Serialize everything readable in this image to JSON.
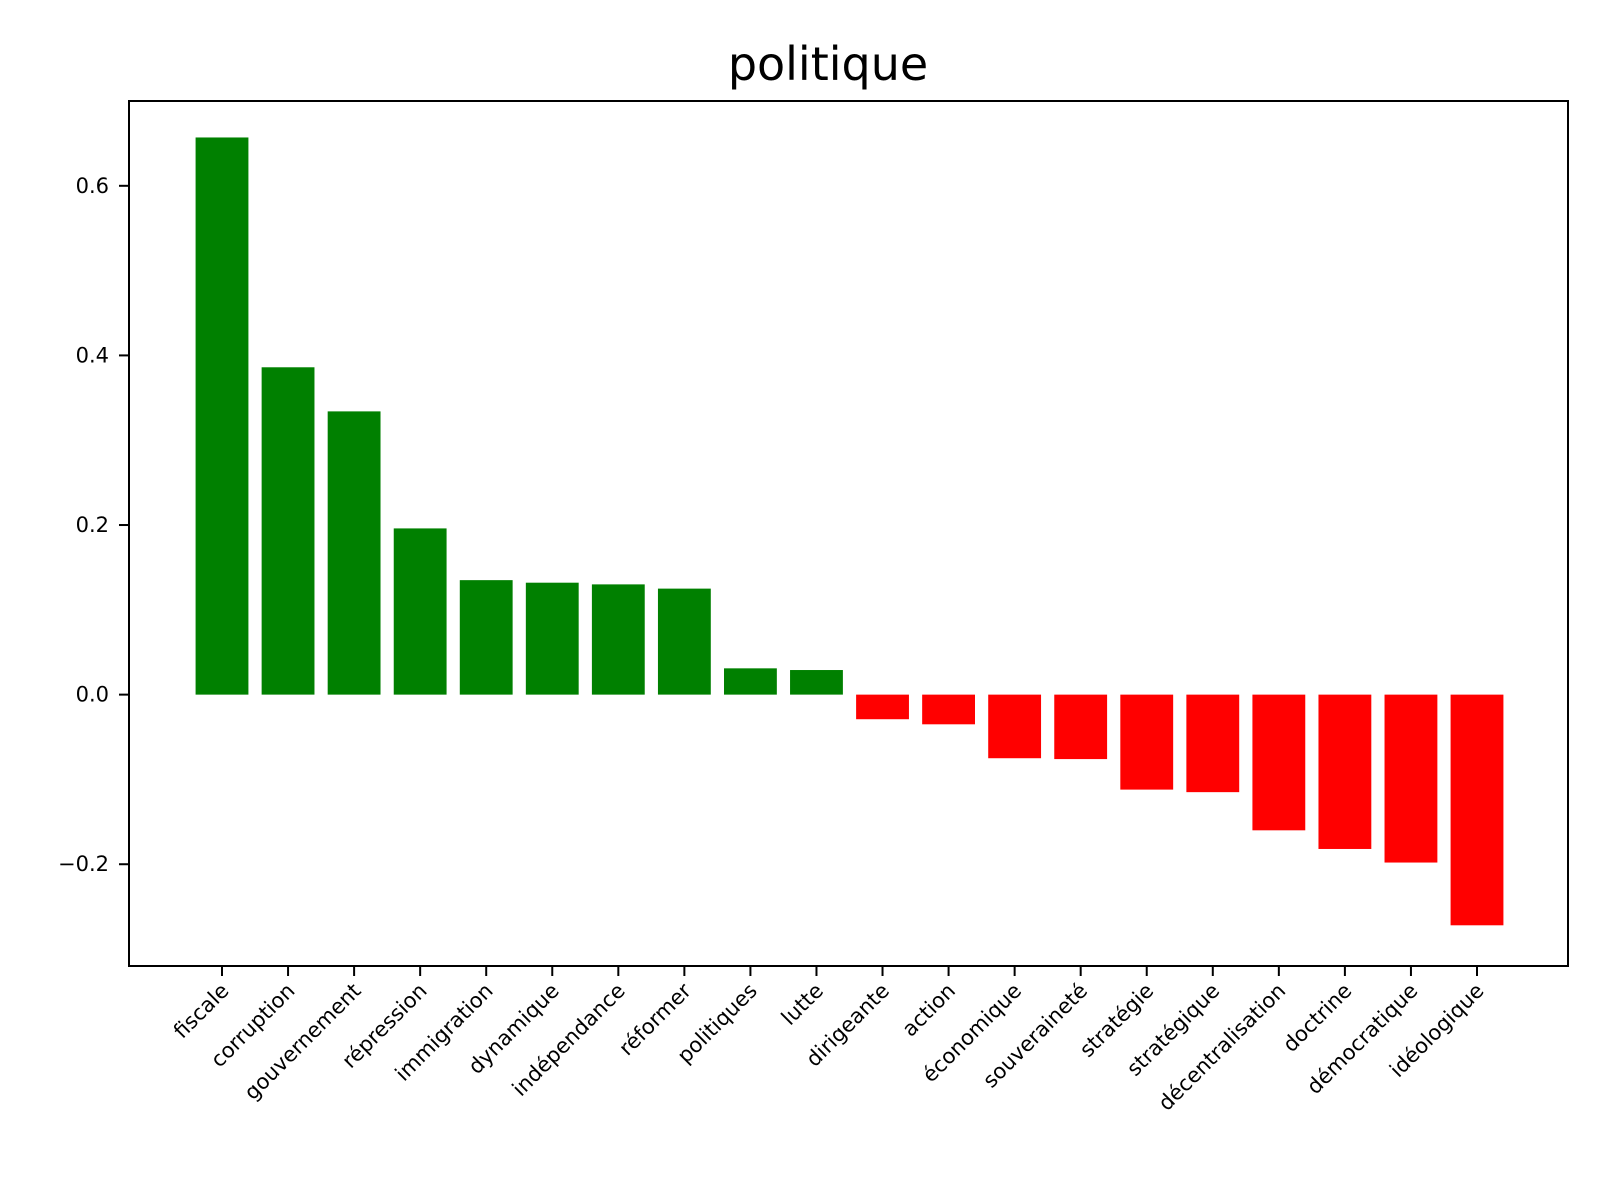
{
  "chart_data": {
    "type": "bar",
    "title": "politique",
    "xlabel": "",
    "ylabel": "",
    "ylim": [
      -0.32,
      0.7
    ],
    "yticks": [
      -0.2,
      0.0,
      0.2,
      0.4,
      0.6
    ],
    "ytick_labels": [
      "−0.2",
      "0.0",
      "0.2",
      "0.4",
      "0.6"
    ],
    "categories": [
      "fiscale",
      "corruption",
      "gouvernement",
      "répression",
      "immigration",
      "dynamique",
      "indépendance",
      "réformer",
      "politiques",
      "lutte",
      "dirigeante",
      "action",
      "économique",
      "souveraineté",
      "stratégie",
      "stratégique",
      "décentralisation",
      "doctrine",
      "démocratique",
      "idéologique"
    ],
    "values": [
      0.657,
      0.386,
      0.334,
      0.196,
      0.135,
      0.132,
      0.13,
      0.125,
      0.031,
      0.029,
      -0.029,
      -0.035,
      -0.075,
      -0.076,
      -0.112,
      -0.115,
      -0.16,
      -0.182,
      -0.198,
      -0.272
    ],
    "colors": {
      "positive": "#008000",
      "negative": "#ff0000"
    },
    "grid": false,
    "legend": "none"
  }
}
